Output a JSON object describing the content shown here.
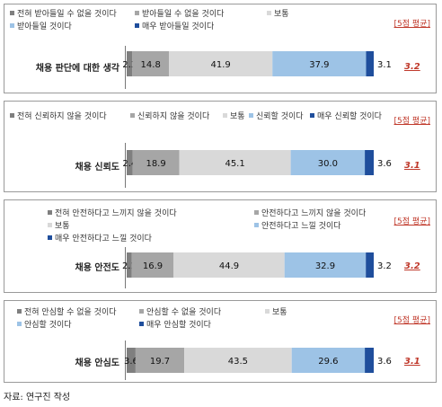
{
  "colors": [
    "#7f7f7f",
    "#a6a6a6",
    "#d9d9d9",
    "#9dc3e6",
    "#1f4e9c"
  ],
  "avg_header": "[5점 평균]",
  "source": "자료: 연구진 작성",
  "chart_data": [
    {
      "type": "bar",
      "orientation": "horizontal-stacked-100",
      "category": "채용 판단에 대한 생각",
      "legend": [
        "전혀 받아들일 수 없을 것이다",
        "받아들일 수 없을 것이다",
        "보통",
        "받아들일 것이다",
        "매우 받아들일 것이다"
      ],
      "values": [
        2.3,
        14.8,
        41.9,
        37.9,
        3.1
      ],
      "labels": [
        "2.3",
        "14.8",
        "41.9",
        "37.9",
        "3.1"
      ],
      "average": "3.2"
    },
    {
      "type": "bar",
      "orientation": "horizontal-stacked-100",
      "category": "채용 신뢰도",
      "legend": [
        "전혀 신뢰하지 않을 것이다",
        "신뢰하지 않을 것이다",
        "보통",
        "신뢰할 것이다",
        "매우 신뢰할 것이다"
      ],
      "values": [
        2.4,
        18.9,
        45.1,
        30.0,
        3.6
      ],
      "labels": [
        "2.4",
        "18.9",
        "45.1",
        "30.0",
        "3.6"
      ],
      "average": "3.1"
    },
    {
      "type": "bar",
      "orientation": "horizontal-stacked-100",
      "category": "채용 안전도",
      "legend": [
        "전혀 안전하다고 느끼지 않을 것이다",
        "안전하다고 느끼지 않을 것이다",
        "보통",
        "안전하다고 느낄 것이다",
        "매우 안전하다고 느낄 것이다"
      ],
      "values": [
        2.1,
        16.9,
        44.9,
        32.9,
        3.2
      ],
      "labels": [
        "2.1",
        "16.9",
        "44.9",
        "32.9",
        "3.2"
      ],
      "average": "3.2"
    },
    {
      "type": "bar",
      "orientation": "horizontal-stacked-100",
      "category": "채용 안심도",
      "legend": [
        "전혀 안심할 수 없을 것이다",
        "안심할 수 없을 것이다",
        "보통",
        "안심할 것이다",
        "매우 안심할 것이다"
      ],
      "values": [
        3.6,
        19.7,
        43.5,
        29.6,
        3.6
      ],
      "labels": [
        "3.6",
        "19.7",
        "43.5",
        "29.6",
        "3.6"
      ],
      "average": "3.1"
    }
  ]
}
